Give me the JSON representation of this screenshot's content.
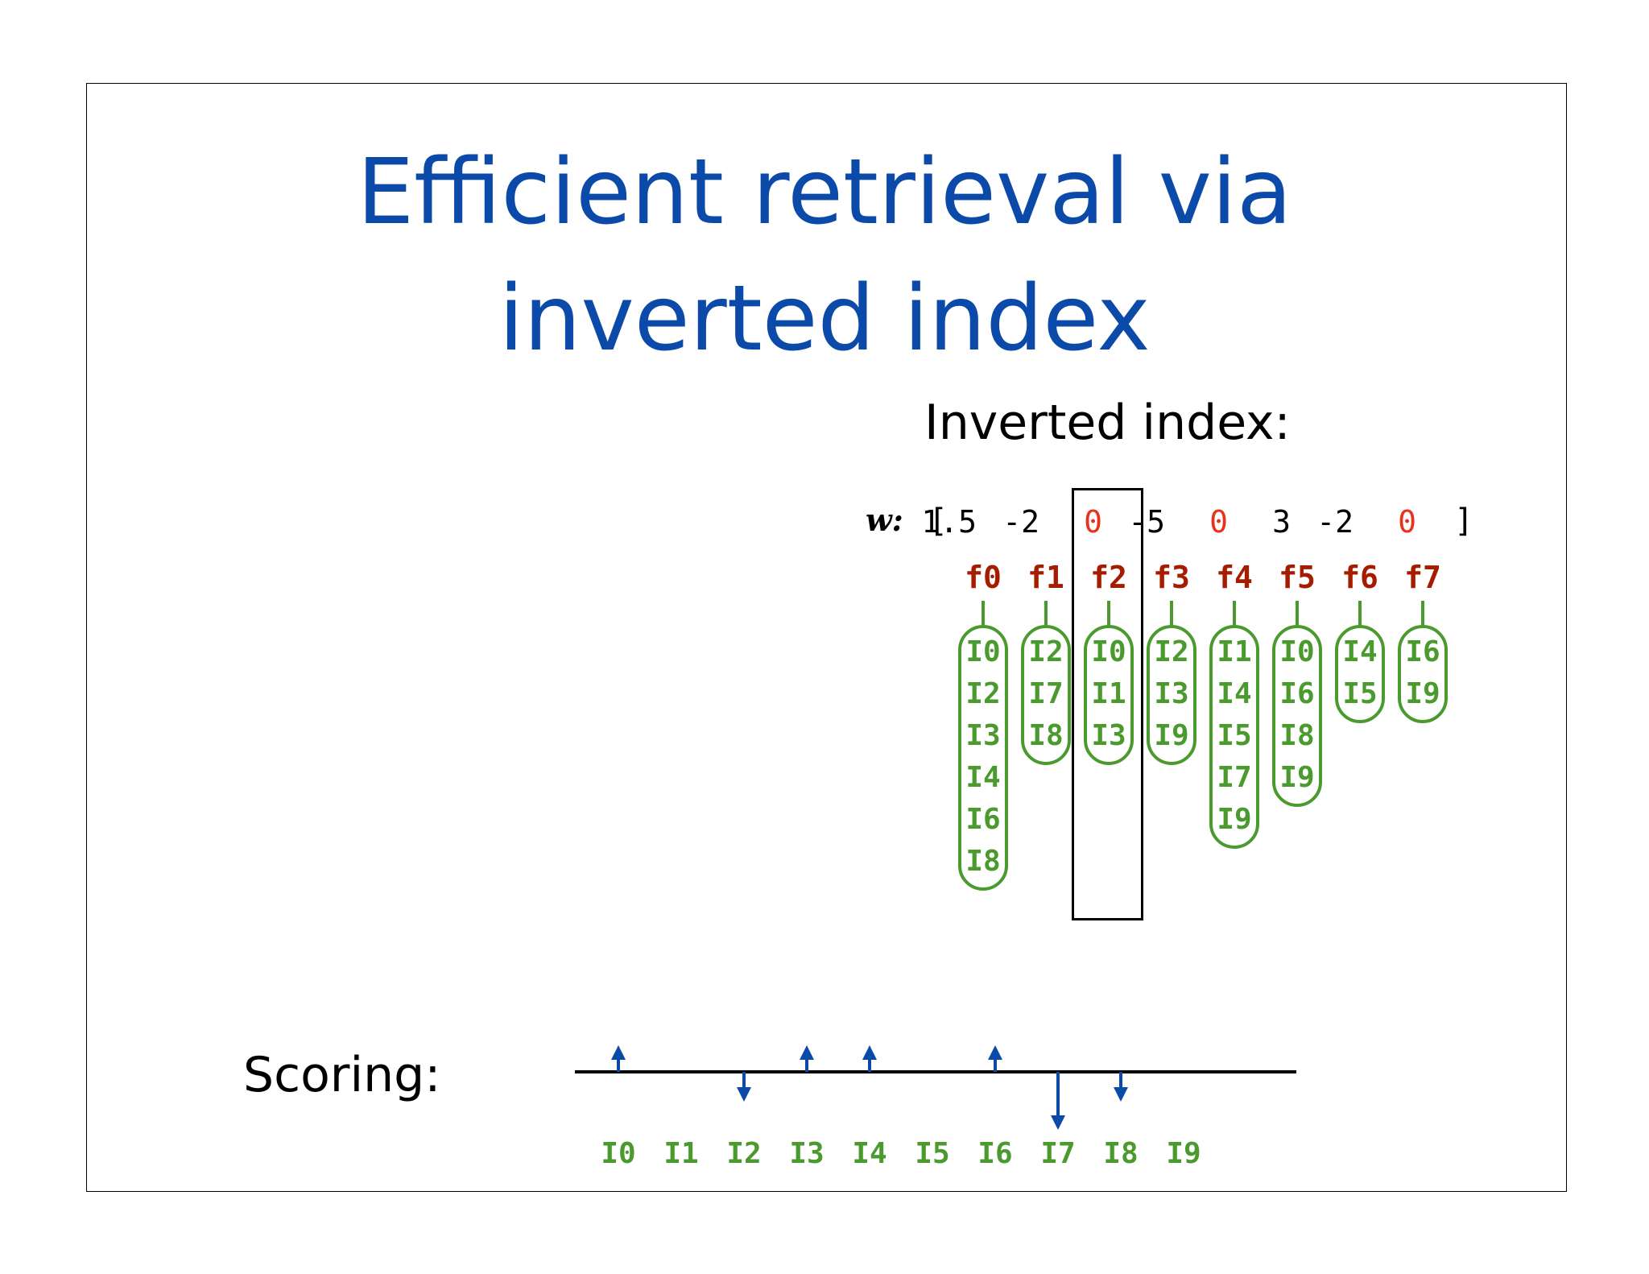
{
  "slide": {
    "title_line1": "Efficient retrieval via",
    "title_line2": "inverted index",
    "subtitle": "Inverted index:",
    "scoring_label": "Scoring:"
  },
  "weights": {
    "label": "w:",
    "open_bracket": "[",
    "close_bracket": "]",
    "values": [
      "1.5",
      "-2",
      "0",
      "-5",
      "0",
      "3",
      "-2",
      "0"
    ],
    "zero_color": "#e8321c",
    "color": "#000000"
  },
  "features": [
    "f0",
    "f1",
    "f2",
    "f3",
    "f4",
    "f5",
    "f6",
    "f7"
  ],
  "postings": [
    [
      "I0",
      "I2",
      "I3",
      "I4",
      "I6",
      "I8"
    ],
    [
      "I2",
      "I7",
      "I8"
    ],
    [
      "I0",
      "I1",
      "I3"
    ],
    [
      "I2",
      "I3",
      "I9"
    ],
    [
      "I1",
      "I4",
      "I5",
      "I7",
      "I9"
    ],
    [
      "I0",
      "I6",
      "I8",
      "I9"
    ],
    [
      "I4",
      "I5"
    ],
    [
      "I6",
      "I9"
    ]
  ],
  "highlighted_feature": "f2",
  "scoring": {
    "docs": [
      "I0",
      "I1",
      "I2",
      "I3",
      "I4",
      "I5",
      "I6",
      "I7",
      "I8",
      "I9"
    ],
    "score_direction": [
      "up",
      "none",
      "down",
      "up",
      "up",
      "none",
      "up",
      "down-long",
      "down",
      "none"
    ]
  },
  "colors": {
    "title": "#0b4aa8",
    "feature": "#a61c00",
    "posting": "#4a9a2e",
    "arrow": "#0b4aa8"
  }
}
